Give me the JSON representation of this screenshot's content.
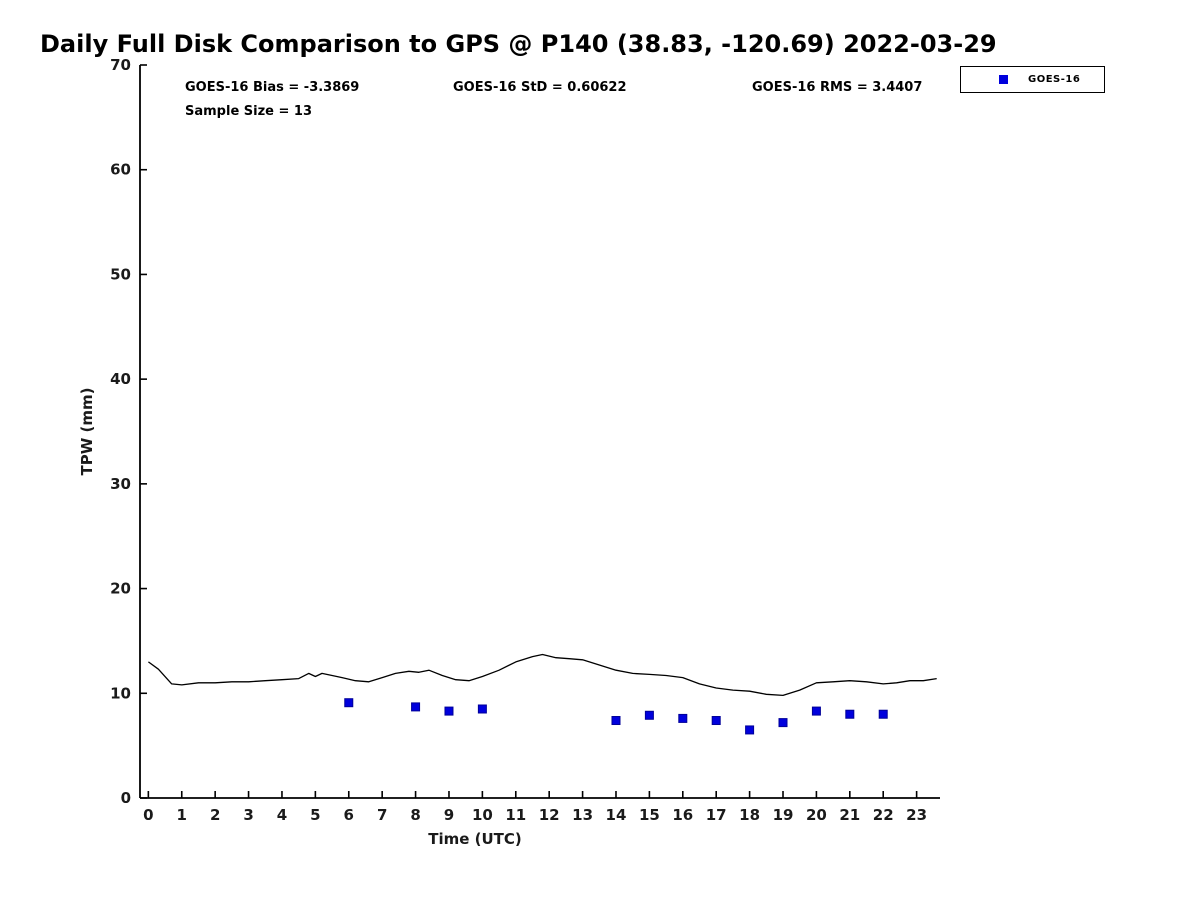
{
  "title": "Daily Full Disk Comparison to GPS @ P140 (38.83, -120.69) 2022-03-29",
  "annotations": {
    "bias": "GOES-16 Bias = -3.3869",
    "std": "GOES-16 StD = 0.60622",
    "rms": "GOES-16 RMS = 3.4407",
    "sample_size": "Sample Size = 13"
  },
  "legend": {
    "items": [
      {
        "label": "GOES-16",
        "marker": "square",
        "color": "#0000DD"
      }
    ]
  },
  "chart_data": {
    "type": "line+scatter",
    "title": "Daily Full Disk Comparison to GPS @ P140 (38.83, -120.69) 2022-03-29",
    "xlabel": "Time (UTC)",
    "ylabel": "TPW (mm)",
    "xlim": [
      -0.25,
      23.7
    ],
    "ylim": [
      0,
      70
    ],
    "xticks": [
      0,
      1,
      2,
      3,
      4,
      5,
      6,
      7,
      8,
      9,
      10,
      11,
      12,
      13,
      14,
      15,
      16,
      17,
      18,
      19,
      20,
      21,
      22,
      23
    ],
    "yticks": [
      0,
      10,
      20,
      30,
      40,
      50,
      60,
      70
    ],
    "grid": false,
    "legend_position": "upper right",
    "series": [
      {
        "name": "GPS",
        "type": "line",
        "color": "#000000",
        "x": [
          0,
          0.3,
          0.7,
          1.0,
          1.5,
          2,
          2.5,
          3,
          3.5,
          4,
          4.5,
          4.8,
          5.0,
          5.2,
          5.5,
          5.8,
          6.2,
          6.6,
          7.0,
          7.4,
          7.8,
          8.1,
          8.4,
          8.8,
          9.2,
          9.6,
          10.0,
          10.5,
          11.0,
          11.5,
          11.8,
          12.2,
          12.6,
          13.0,
          13.5,
          14.0,
          14.5,
          15.0,
          15.5,
          16.0,
          16.5,
          17.0,
          17.5,
          18.0,
          18.5,
          19.0,
          19.5,
          20.0,
          20.5,
          21.0,
          21.5,
          22.0,
          22.4,
          22.8,
          23.2,
          23.6
        ],
        "y": [
          13.0,
          12.3,
          10.9,
          10.8,
          11.0,
          11.0,
          11.1,
          11.1,
          11.2,
          11.3,
          11.4,
          11.9,
          11.6,
          11.9,
          11.7,
          11.5,
          11.2,
          11.1,
          11.5,
          11.9,
          12.1,
          12.0,
          12.2,
          11.7,
          11.3,
          11.2,
          11.6,
          12.2,
          13.0,
          13.5,
          13.7,
          13.4,
          13.3,
          13.2,
          12.7,
          12.2,
          11.9,
          11.8,
          11.7,
          11.5,
          10.9,
          10.5,
          10.3,
          10.2,
          9.9,
          9.8,
          10.3,
          11.0,
          11.1,
          11.2,
          11.1,
          10.9,
          11.0,
          11.2,
          11.2,
          11.4
        ]
      },
      {
        "name": "GOES-16",
        "type": "scatter",
        "marker": "square",
        "color": "#0000DD",
        "x": [
          6,
          8,
          9,
          10,
          14,
          15,
          16,
          17,
          18,
          19,
          20,
          21,
          22
        ],
        "y": [
          9.1,
          8.7,
          8.3,
          8.5,
          7.4,
          7.9,
          7.6,
          7.4,
          6.5,
          7.2,
          8.3,
          8.0,
          8.0
        ]
      }
    ]
  }
}
